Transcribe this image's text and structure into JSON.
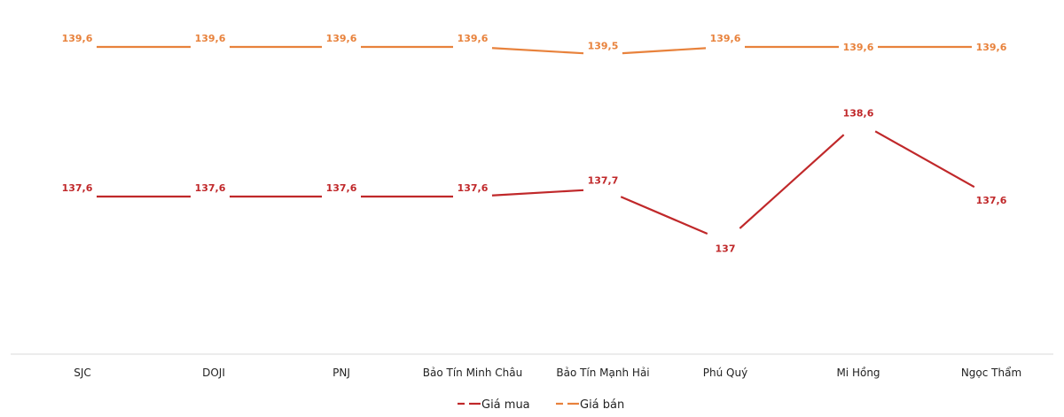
{
  "chart_data": {
    "type": "line",
    "title": "",
    "xlabel": "",
    "ylabel": "",
    "categories": [
      "SJC",
      "DOJI",
      "PNJ",
      "Bảo Tín Minh Châu",
      "Bảo Tín Mạnh Hải",
      "Phú Quý",
      "Mi Hồng",
      "Ngọc Thẩm"
    ],
    "series": [
      {
        "name": "Giá mua",
        "color": "#C0282A",
        "values": [
          137.6,
          137.6,
          137.6,
          137.6,
          137.7,
          137,
          138.6,
          137.6
        ],
        "labels": [
          "137,6",
          "137,6",
          "137,6",
          "137,6",
          "137,7",
          "137",
          "138,6",
          "137,6"
        ]
      },
      {
        "name": "Giá bán",
        "color": "#E8823C",
        "values": [
          139.6,
          139.6,
          139.6,
          139.6,
          139.5,
          139.6,
          139.6,
          139.6
        ],
        "labels": [
          "139,6",
          "139,6",
          "139,6",
          "139,6",
          "139,5",
          "139,6",
          "139,6",
          "139,6"
        ]
      }
    ],
    "legend_position": "bottom",
    "grid": false,
    "axis_color": "#D9D9D9"
  }
}
